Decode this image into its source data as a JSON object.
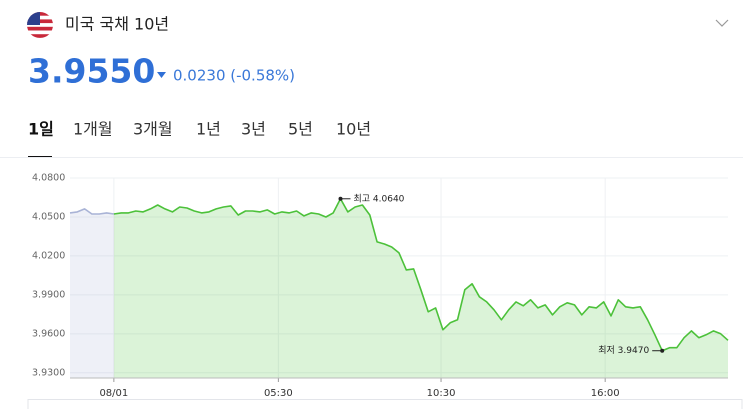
{
  "header": {
    "title": "미국 국채 10년",
    "price": "3.9550",
    "change": "0.0230 (-0.58%)"
  },
  "tabs": [
    "1일",
    "1개월",
    "3개월",
    "1년",
    "3년",
    "5년",
    "10년"
  ],
  "active_tab": 0,
  "chart_data": {
    "type": "line",
    "x": [
      0,
      1,
      2,
      3,
      4,
      5,
      6,
      7,
      8,
      9,
      10,
      11,
      12,
      13,
      14,
      15,
      16,
      17,
      18,
      19,
      20,
      21,
      22,
      23,
      24,
      25,
      26,
      27,
      28,
      29,
      30,
      31,
      32,
      33,
      34,
      35,
      36,
      37,
      38,
      39,
      40,
      41,
      42,
      43,
      44,
      45,
      46,
      47,
      48,
      49,
      50,
      51,
      52,
      53,
      54,
      55,
      56,
      57,
      58,
      59,
      60,
      61,
      62,
      63,
      64,
      65,
      66,
      67,
      68,
      69,
      70,
      71,
      72,
      73,
      74,
      75,
      76,
      77,
      78,
      79,
      80,
      81,
      82,
      83,
      84,
      85,
      86,
      87,
      88,
      89,
      90
    ],
    "series": [
      {
        "color": "#a9b3d6",
        "values": [
          4.0531,
          4.0539,
          4.0562,
          4.0523,
          4.0523,
          4.0531,
          4.0523,
          null,
          null,
          null,
          null,
          null,
          null,
          null,
          null,
          null,
          null,
          null,
          null,
          null,
          null,
          null,
          null,
          null,
          null,
          null,
          null,
          null,
          null,
          null,
          null,
          null,
          null,
          null,
          null,
          null,
          null,
          null,
          null,
          null,
          null,
          null,
          null,
          null,
          null,
          null,
          null,
          null,
          null,
          null,
          null,
          null,
          null,
          null,
          null,
          null,
          null,
          null,
          null,
          null,
          null,
          null,
          null,
          null,
          null,
          null,
          null,
          null,
          null,
          null,
          null,
          null,
          null,
          null,
          null,
          null,
          null,
          null,
          null,
          null,
          null,
          null,
          null,
          null,
          null,
          null,
          null,
          null,
          null,
          null,
          null
        ]
      },
      {
        "color": "#4cc13a",
        "values": [
          null,
          null,
          null,
          null,
          null,
          null,
          4.0523,
          4.0531,
          4.0531,
          4.0546,
          4.0539,
          4.0562,
          4.0592,
          4.0562,
          4.0539,
          4.0577,
          4.0569,
          4.0546,
          4.0531,
          4.0539,
          4.0562,
          4.0577,
          4.0585,
          4.0515,
          4.0546,
          4.0546,
          4.0539,
          4.0554,
          4.0523,
          4.0539,
          4.0531,
          4.0546,
          4.0508,
          4.0531,
          4.0523,
          4.05,
          4.0531,
          4.064,
          4.0539,
          4.0577,
          4.0592,
          4.0515,
          4.0308,
          4.0292,
          4.0269,
          4.0223,
          4.0092,
          4.01,
          3.9939,
          3.977,
          3.98,
          3.9631,
          3.9685,
          3.9708,
          3.9939,
          3.9985,
          3.9885,
          3.9846,
          3.9785,
          3.9708,
          3.9785,
          3.9846,
          3.9816,
          3.9862,
          3.98,
          3.9823,
          3.9746,
          3.9808,
          3.9839,
          3.9823,
          3.9746,
          3.9808,
          3.98,
          3.9846,
          3.9738,
          3.9862,
          3.9808,
          3.98,
          3.9808,
          3.9708,
          3.9593,
          3.947,
          3.9493,
          3.9493,
          3.957,
          3.9623,
          3.957,
          3.9593,
          3.9623,
          3.96,
          3.955
        ]
      }
    ],
    "xlim": [
      0,
      90
    ],
    "xticks": [
      {
        "value": 6,
        "label": "08/01"
      },
      {
        "value": 28.5,
        "label": "05:30"
      },
      {
        "value": 50.75,
        "label": "10:30"
      },
      {
        "value": 73.2,
        "label": "16:00"
      }
    ],
    "ylim": [
      3.926,
      4.08
    ],
    "yticks": [
      {
        "value": 3.93,
        "label": "3.9300"
      },
      {
        "value": 3.96,
        "label": "3.9600"
      },
      {
        "value": 3.99,
        "label": "3.9900"
      },
      {
        "value": 4.02,
        "label": "4.0200"
      },
      {
        "value": 4.05,
        "label": "4.0500"
      },
      {
        "value": 4.08,
        "label": "4.0800"
      }
    ],
    "grid": true,
    "annotations": [
      {
        "text": "최고 4.0640",
        "x": 37,
        "y": 4.064,
        "side": "right"
      },
      {
        "text": "최저 3.9470",
        "x": 81,
        "y": 3.947,
        "side": "left"
      }
    ]
  }
}
